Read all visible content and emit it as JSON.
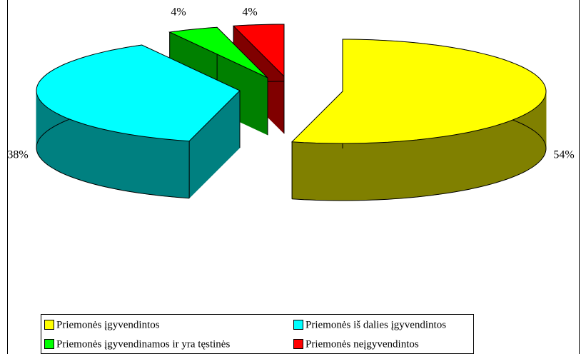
{
  "chart_data": {
    "type": "pie3d",
    "categories": [
      "Priemonės įgyvendintos",
      "Priemonės iš dalies įgyvendintos",
      "Priemonės įgyvendinamos ir yra tęstinės",
      "Priemonės neįgyvendintos"
    ],
    "values": [
      54,
      38,
      4,
      4
    ],
    "value_labels": [
      "54%",
      "38%",
      "4%",
      "4%"
    ],
    "colors": [
      "#ffff00",
      "#00ffff",
      "#00ff00",
      "#ff0000"
    ],
    "side_colors": [
      "#808000",
      "#008080",
      "#008000",
      "#800000"
    ],
    "legend": "bottom"
  }
}
